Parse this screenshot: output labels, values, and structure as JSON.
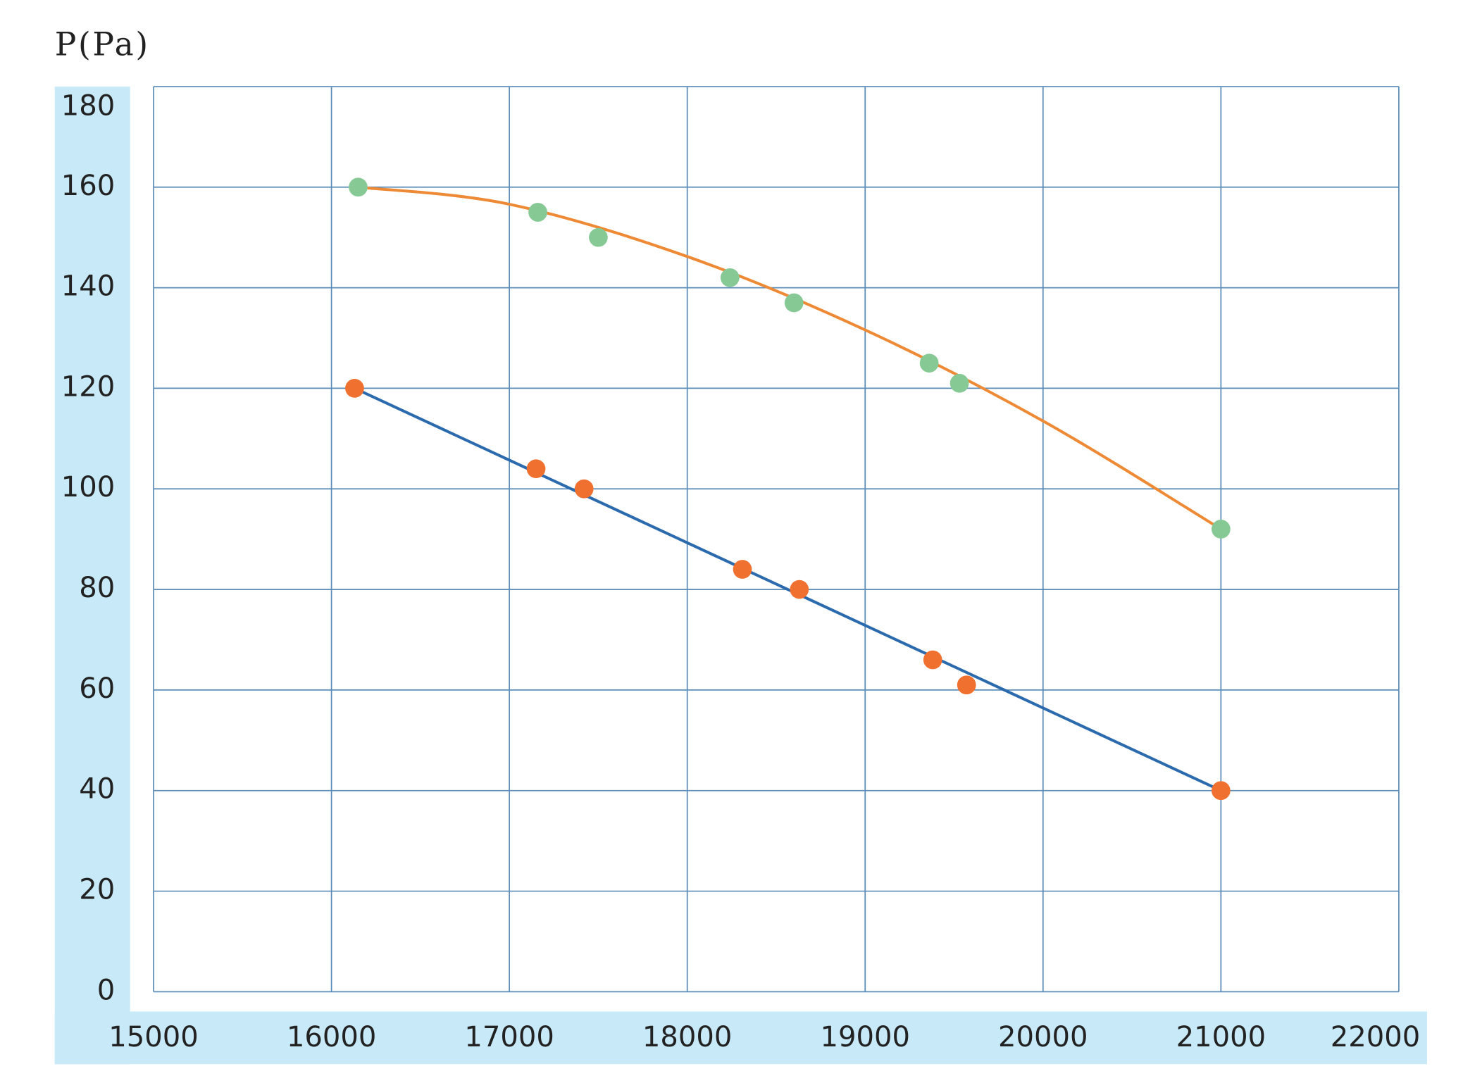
{
  "chart_data": {
    "type": "scatter",
    "title": "P(Pa)",
    "xlim": [
      15000,
      22000
    ],
    "xticks": [
      15000,
      16000,
      17000,
      18000,
      19000,
      20000,
      21000,
      22000
    ],
    "ylim": [
      0,
      180
    ],
    "yticks": [
      0,
      20,
      40,
      60,
      80,
      100,
      120,
      140,
      160,
      180
    ],
    "grid": true,
    "grid_color": "#5b8db8",
    "axis_band_color": "#c8eaf8",
    "series": [
      {
        "color": "#86c995",
        "line_color": "#ee8a35",
        "x": [
          16150,
          17160,
          17500,
          18240,
          18600,
          19360,
          19530,
          21000
        ],
        "values": [
          160,
          155,
          150,
          142,
          137,
          125,
          121,
          92
        ],
        "line_x": [
          16150,
          17000,
          18000,
          19000,
          20000,
          21000
        ],
        "line_values": [
          160,
          156.6,
          146.2,
          131.6,
          113.5,
          92
        ]
      },
      {
        "color": "#f07030",
        "line_color": "#2b6aad",
        "x": [
          16130,
          17150,
          17420,
          18310,
          18630,
          19380,
          19570,
          21000
        ],
        "values": [
          120,
          104,
          100,
          84,
          80,
          66,
          61,
          40
        ],
        "line_x": [
          16130,
          21000
        ],
        "line_values": [
          120,
          40
        ]
      }
    ]
  }
}
